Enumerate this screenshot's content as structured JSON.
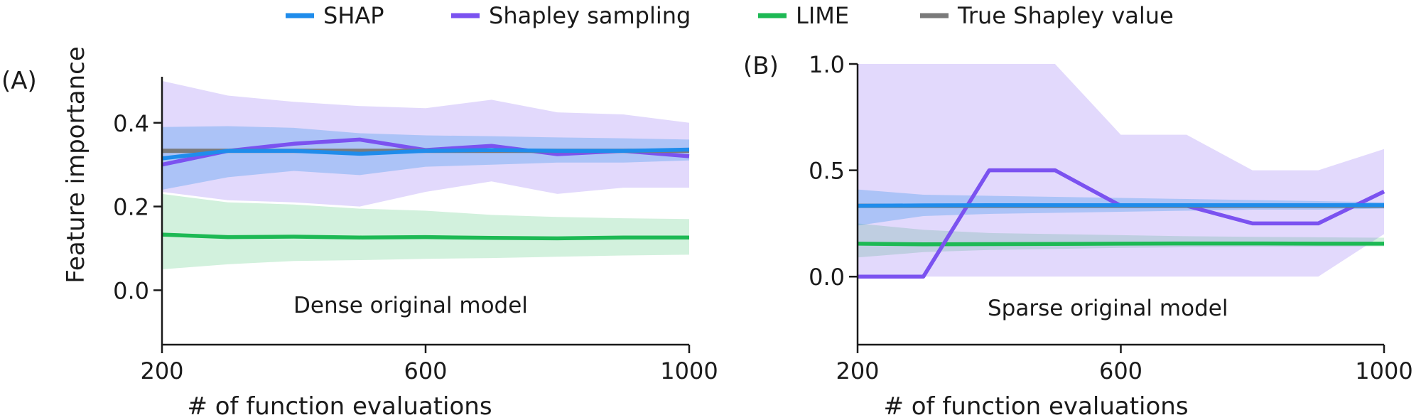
{
  "legend": [
    {
      "key": "shap",
      "label": "SHAP",
      "color": "#1f8ceb"
    },
    {
      "key": "shapley_sampling",
      "label": "Shapley sampling",
      "color": "#7b52f0"
    },
    {
      "key": "lime",
      "label": "LIME",
      "color": "#1db954"
    },
    {
      "key": "true",
      "label": "True Shapley value",
      "color": "#7a7a7a"
    }
  ],
  "chart_data": [
    {
      "type": "line",
      "panel_label": "(A)",
      "annotation": "Dense original model",
      "xlabel": "# of function evaluations",
      "ylabel": "Feature importance",
      "xlim": [
        200,
        1000
      ],
      "ylim": [
        -0.13,
        0.51
      ],
      "xticks": [
        200,
        600,
        1000
      ],
      "yticks": [
        0.0,
        0.2,
        0.4
      ],
      "ytick_labels": [
        "0.0",
        "0.2",
        "0.4"
      ],
      "grid": false,
      "x": [
        200,
        300,
        400,
        500,
        600,
        700,
        800,
        900,
        1000
      ],
      "true_value": 0.333,
      "series": [
        {
          "key": "shap",
          "name": "SHAP",
          "values": [
            0.315,
            0.333,
            0.333,
            0.326,
            0.333,
            0.335,
            0.333,
            0.333,
            0.336
          ],
          "lower": [
            0.24,
            0.27,
            0.285,
            0.275,
            0.295,
            0.3,
            0.305,
            0.305,
            0.31
          ],
          "upper": [
            0.39,
            0.392,
            0.388,
            0.375,
            0.37,
            0.368,
            0.365,
            0.363,
            0.36
          ]
        },
        {
          "key": "shapley_sampling",
          "name": "Shapley sampling",
          "values": [
            0.3,
            0.333,
            0.35,
            0.36,
            0.335,
            0.345,
            0.325,
            0.333,
            0.32
          ],
          "lower": [
            0.235,
            0.215,
            0.21,
            0.2,
            0.235,
            0.26,
            0.23,
            0.245,
            0.245
          ],
          "upper": [
            0.5,
            0.465,
            0.45,
            0.44,
            0.435,
            0.455,
            0.425,
            0.42,
            0.4
          ]
        },
        {
          "key": "lime",
          "name": "LIME",
          "values": [
            0.133,
            0.127,
            0.128,
            0.126,
            0.127,
            0.125,
            0.124,
            0.126,
            0.126
          ],
          "lower": [
            0.05,
            0.062,
            0.07,
            0.072,
            0.075,
            0.077,
            0.08,
            0.083,
            0.085
          ],
          "upper": [
            0.23,
            0.21,
            0.205,
            0.195,
            0.19,
            0.18,
            0.175,
            0.172,
            0.17
          ]
        }
      ]
    },
    {
      "type": "line",
      "panel_label": "(B)",
      "annotation": "Sparse original model",
      "xlabel": "# of function evaluations",
      "ylabel": "",
      "xlim": [
        200,
        1000
      ],
      "ylim": [
        -0.32,
        1.0
      ],
      "xticks": [
        200,
        600,
        1000
      ],
      "yticks": [
        0.0,
        0.5,
        1.0
      ],
      "ytick_labels": [
        "0.0",
        "0.5",
        "1.0"
      ],
      "grid": false,
      "x": [
        200,
        300,
        400,
        500,
        600,
        700,
        800,
        900,
        1000
      ],
      "true_value": 0.333,
      "series": [
        {
          "key": "shap",
          "name": "SHAP",
          "values": [
            0.333,
            0.335,
            0.336,
            0.336,
            0.336,
            0.336,
            0.336,
            0.336,
            0.336
          ],
          "lower": [
            0.24,
            0.285,
            0.295,
            0.3,
            0.305,
            0.31,
            0.315,
            0.315,
            0.32
          ],
          "upper": [
            0.41,
            0.385,
            0.38,
            0.375,
            0.37,
            0.365,
            0.36,
            0.355,
            0.35
          ]
        },
        {
          "key": "shapley_sampling",
          "name": "Shapley sampling",
          "values": [
            0.0,
            0.0,
            0.5,
            0.5,
            0.333,
            0.333,
            0.25,
            0.25,
            0.4
          ],
          "lower": [
            0.0,
            0.0,
            0.0,
            0.0,
            0.0,
            0.0,
            0.0,
            0.0,
            0.2
          ],
          "upper": [
            1.0,
            1.0,
            1.0,
            1.0,
            0.667,
            0.667,
            0.5,
            0.5,
            0.6
          ]
        },
        {
          "key": "lime",
          "name": "LIME",
          "values": [
            0.155,
            0.152,
            0.153,
            0.154,
            0.155,
            0.156,
            0.156,
            0.155,
            0.155
          ],
          "lower": [
            0.09,
            0.115,
            0.125,
            0.13,
            0.135,
            0.138,
            0.14,
            0.14,
            0.142
          ],
          "upper": [
            0.25,
            0.22,
            0.205,
            0.2,
            0.195,
            0.19,
            0.187,
            0.185,
            0.183
          ]
        }
      ]
    }
  ]
}
